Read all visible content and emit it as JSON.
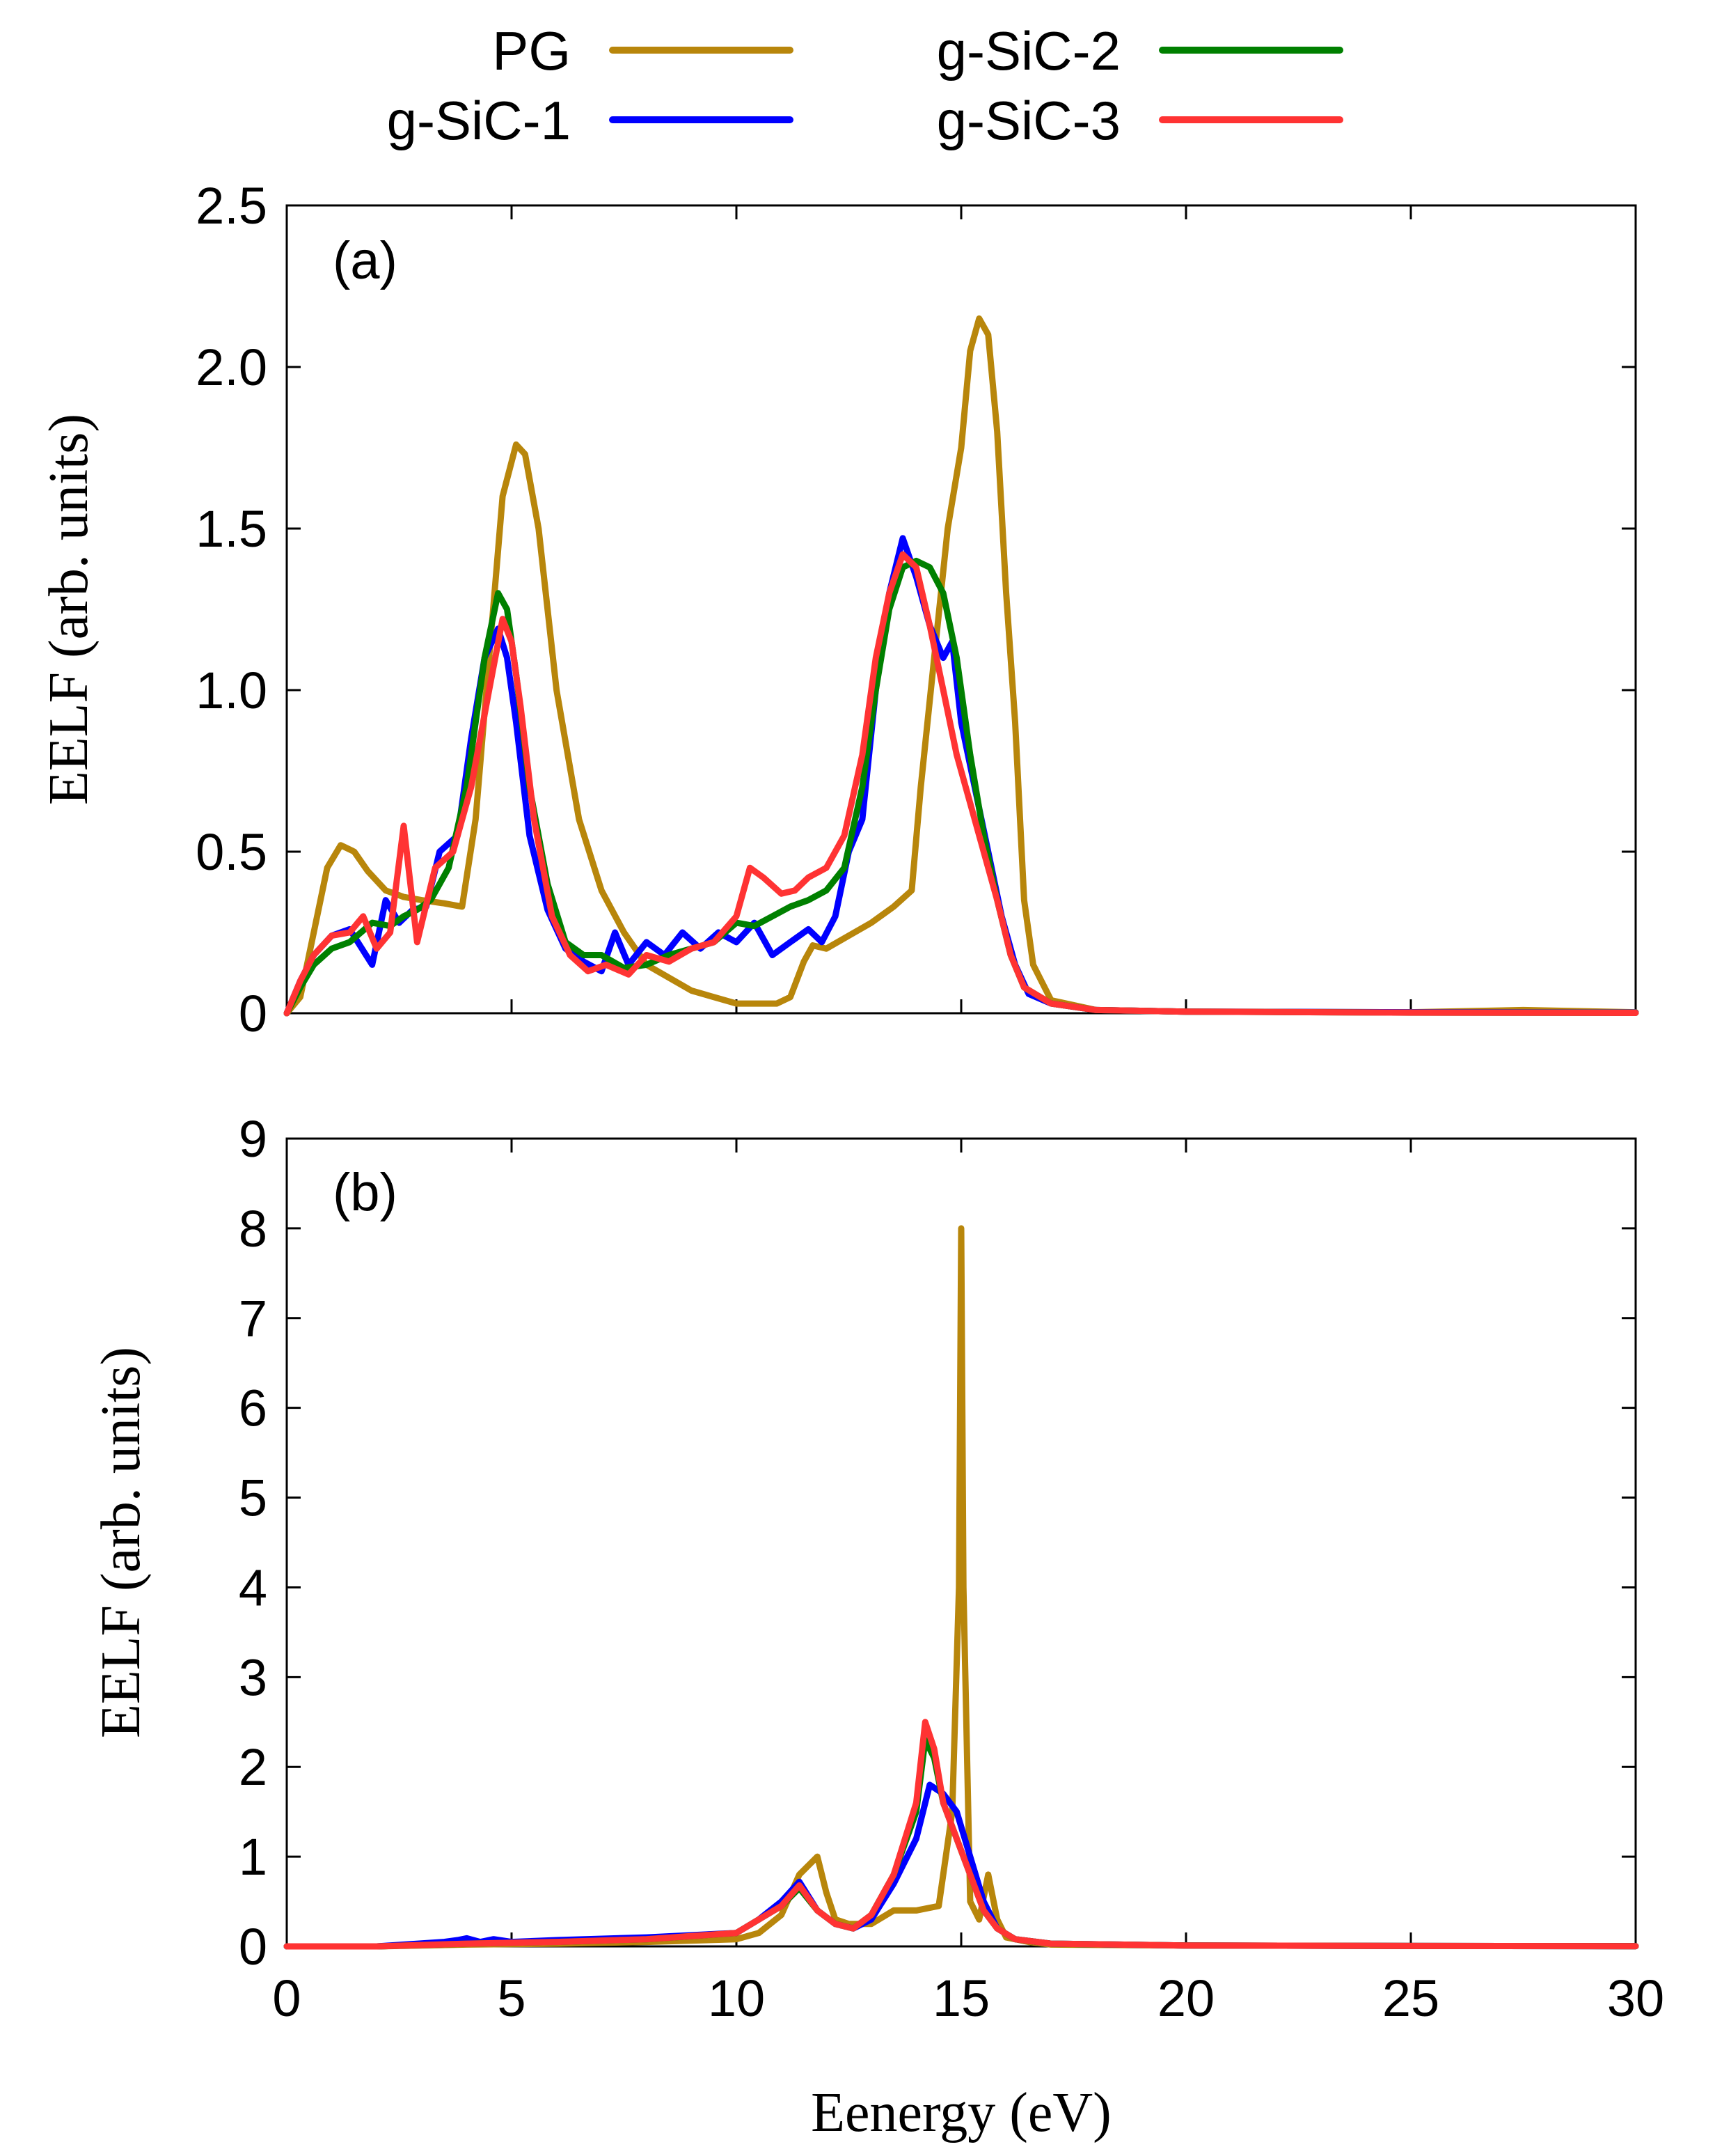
{
  "chart_data": {
    "type": "line",
    "xlabel": "Eenergy (eV)",
    "xlim": [
      0,
      30
    ],
    "xticks": [
      "0",
      "5",
      "10",
      "15",
      "20",
      "25",
      "30"
    ],
    "legend": {
      "placement": "top-center",
      "entries": [
        {
          "name": "PG",
          "color": "#b8860b"
        },
        {
          "name": "g-SiC-1",
          "color": "#0000ff"
        },
        {
          "name": "g-SiC-2",
          "color": "#008000"
        },
        {
          "name": "g-SiC-3",
          "color": "#ff3333"
        }
      ]
    },
    "panels": [
      {
        "label": "(a)",
        "ylabel": "EELF (arb. units)",
        "ylim": [
          0,
          2.5
        ],
        "yticks": [
          "0",
          "0.5",
          "1.0",
          "1.5",
          "2.0",
          "2.5"
        ],
        "series": [
          {
            "name": "PG",
            "color": "#b8860b",
            "x": [
              0,
              0.3,
              0.6,
              0.9,
              1.2,
              1.5,
              1.8,
              2.2,
              2.6,
              3.0,
              3.5,
              3.9,
              4.2,
              4.5,
              4.8,
              5.1,
              5.3,
              5.6,
              6.0,
              6.5,
              7.0,
              7.5,
              8.0,
              9.0,
              10.0,
              10.9,
              11.2,
              11.5,
              11.7,
              12.0,
              12.5,
              13.0,
              13.5,
              13.9,
              14.1,
              14.4,
              14.7,
              15.0,
              15.2,
              15.4,
              15.6,
              15.8,
              16.0,
              16.2,
              16.4,
              16.6,
              17.0,
              18.0,
              20.0,
              25.0,
              27.5,
              30.0
            ],
            "values": [
              0,
              0.05,
              0.25,
              0.45,
              0.52,
              0.5,
              0.44,
              0.38,
              0.36,
              0.35,
              0.34,
              0.33,
              0.6,
              1.1,
              1.6,
              1.76,
              1.73,
              1.5,
              1.0,
              0.6,
              0.38,
              0.25,
              0.15,
              0.07,
              0.03,
              0.03,
              0.05,
              0.16,
              0.21,
              0.2,
              0.24,
              0.28,
              0.33,
              0.38,
              0.7,
              1.1,
              1.5,
              1.75,
              2.05,
              2.15,
              2.1,
              1.8,
              1.3,
              0.9,
              0.35,
              0.15,
              0.04,
              0.01,
              0.005,
              0.003,
              0.01,
              0.003
            ]
          },
          {
            "name": "g-SiC-1",
            "color": "#0000ff",
            "x": [
              0,
              0.3,
              0.6,
              1.0,
              1.4,
              1.9,
              2.2,
              2.5,
              2.8,
              3.1,
              3.4,
              3.8,
              4.1,
              4.4,
              4.7,
              4.9,
              5.1,
              5.4,
              5.8,
              6.2,
              6.6,
              7.0,
              7.3,
              7.6,
              8.0,
              8.4,
              8.8,
              9.2,
              9.6,
              10.0,
              10.4,
              10.8,
              11.2,
              11.6,
              11.9,
              12.2,
              12.5,
              12.8,
              13.1,
              13.4,
              13.7,
              14.0,
              14.3,
              14.6,
              14.8,
              15.0,
              15.3,
              15.6,
              15.9,
              16.2,
              16.5,
              17.0,
              18.0,
              20.0,
              25.0,
              30.0
            ],
            "values": [
              0,
              0.1,
              0.18,
              0.24,
              0.26,
              0.15,
              0.35,
              0.28,
              0.32,
              0.33,
              0.5,
              0.55,
              0.85,
              1.1,
              1.19,
              1.1,
              0.9,
              0.55,
              0.32,
              0.2,
              0.16,
              0.13,
              0.25,
              0.15,
              0.22,
              0.18,
              0.25,
              0.2,
              0.25,
              0.22,
              0.28,
              0.18,
              0.22,
              0.26,
              0.22,
              0.3,
              0.5,
              0.6,
              1.0,
              1.3,
              1.47,
              1.35,
              1.2,
              1.1,
              1.15,
              0.9,
              0.7,
              0.5,
              0.3,
              0.15,
              0.06,
              0.03,
              0.01,
              0.005,
              0.003,
              0.002
            ]
          },
          {
            "name": "g-SiC-2",
            "color": "#008000",
            "x": [
              0,
              0.3,
              0.6,
              1.0,
              1.4,
              1.9,
              2.3,
              2.6,
              2.9,
              3.2,
              3.6,
              4.0,
              4.4,
              4.7,
              4.9,
              5.1,
              5.4,
              5.8,
              6.2,
              6.6,
              7.0,
              7.5,
              8.0,
              8.5,
              9.0,
              9.5,
              10.0,
              10.4,
              10.8,
              11.2,
              11.6,
              12.0,
              12.4,
              12.8,
              13.1,
              13.4,
              13.7,
              14.0,
              14.3,
              14.6,
              14.9,
              15.2,
              15.5,
              15.8,
              16.1,
              16.4,
              17.0,
              18.0,
              20.0,
              25.0,
              30.0
            ],
            "values": [
              0,
              0.08,
              0.15,
              0.2,
              0.22,
              0.28,
              0.27,
              0.3,
              0.32,
              0.35,
              0.45,
              0.7,
              1.1,
              1.3,
              1.25,
              1.05,
              0.7,
              0.4,
              0.22,
              0.18,
              0.18,
              0.14,
              0.15,
              0.18,
              0.2,
              0.22,
              0.28,
              0.27,
              0.3,
              0.33,
              0.35,
              0.38,
              0.45,
              0.7,
              1.0,
              1.25,
              1.38,
              1.4,
              1.38,
              1.3,
              1.1,
              0.8,
              0.55,
              0.35,
              0.18,
              0.08,
              0.03,
              0.01,
              0.005,
              0.002,
              0.001
            ]
          },
          {
            "name": "g-SiC-3",
            "color": "#ff3333",
            "x": [
              0,
              0.3,
              0.6,
              1.0,
              1.4,
              1.7,
              2.0,
              2.3,
              2.6,
              2.9,
              3.3,
              3.7,
              4.1,
              4.5,
              4.8,
              5.0,
              5.2,
              5.5,
              5.9,
              6.3,
              6.7,
              7.1,
              7.6,
              8.0,
              8.5,
              9.0,
              9.5,
              10.0,
              10.3,
              10.6,
              11.0,
              11.3,
              11.6,
              12.0,
              12.4,
              12.8,
              13.1,
              13.4,
              13.7,
              14.0,
              14.3,
              14.6,
              14.9,
              15.2,
              15.5,
              15.8,
              16.1,
              16.4,
              17.0,
              18.0,
              20.0,
              25.0,
              30.0
            ],
            "values": [
              0,
              0.1,
              0.18,
              0.24,
              0.25,
              0.3,
              0.2,
              0.25,
              0.58,
              0.22,
              0.45,
              0.5,
              0.7,
              1.0,
              1.22,
              1.15,
              0.95,
              0.6,
              0.3,
              0.18,
              0.13,
              0.15,
              0.12,
              0.18,
              0.16,
              0.2,
              0.22,
              0.3,
              0.45,
              0.42,
              0.37,
              0.38,
              0.42,
              0.45,
              0.55,
              0.8,
              1.1,
              1.3,
              1.42,
              1.38,
              1.2,
              1.0,
              0.8,
              0.65,
              0.5,
              0.35,
              0.18,
              0.08,
              0.03,
              0.01,
              0.005,
              0.002,
              0.001
            ]
          }
        ]
      },
      {
        "label": "(b)",
        "ylabel": "EELF (arb. units)",
        "ylim": [
          0,
          9
        ],
        "yticks": [
          "0",
          "1",
          "2",
          "3",
          "4",
          "5",
          "6",
          "7",
          "8",
          "9"
        ],
        "series": [
          {
            "name": "PG",
            "color": "#b8860b",
            "x": [
              0,
              2,
              4,
              6,
              8,
              10,
              10.5,
              11.0,
              11.4,
              11.8,
              12.0,
              12.2,
              12.5,
              13.0,
              13.5,
              14.0,
              14.5,
              14.8,
              14.95,
              15.0,
              15.05,
              15.2,
              15.4,
              15.6,
              15.8,
              16.0,
              16.5,
              17,
              20,
              25,
              30
            ],
            "values": [
              0,
              0,
              0.02,
              0.03,
              0.05,
              0.08,
              0.15,
              0.35,
              0.8,
              1.0,
              0.6,
              0.3,
              0.25,
              0.25,
              0.4,
              0.4,
              0.45,
              1.5,
              4.0,
              8.0,
              4.0,
              0.5,
              0.3,
              0.8,
              0.3,
              0.1,
              0.05,
              0.02,
              0.01,
              0.005,
              0.003
            ]
          },
          {
            "name": "g-SiC-1",
            "color": "#0000ff",
            "x": [
              0,
              2,
              3.5,
              3.8,
              4.0,
              4.3,
              4.6,
              5,
              6,
              8,
              10,
              10.5,
              11.0,
              11.4,
              11.8,
              12.2,
              12.6,
              13.0,
              13.5,
              14.0,
              14.3,
              14.6,
              14.9,
              15.2,
              15.5,
              15.8,
              16.2,
              17,
              20,
              25,
              30
            ],
            "values": [
              0,
              0,
              0.05,
              0.07,
              0.09,
              0.05,
              0.08,
              0.05,
              0.07,
              0.1,
              0.15,
              0.3,
              0.5,
              0.72,
              0.4,
              0.25,
              0.2,
              0.3,
              0.7,
              1.2,
              1.8,
              1.7,
              1.5,
              1.0,
              0.5,
              0.2,
              0.08,
              0.03,
              0.01,
              0.005,
              0.002
            ]
          },
          {
            "name": "g-SiC-2",
            "color": "#008000",
            "x": [
              0,
              2,
              4,
              6,
              8,
              10,
              10.5,
              11.0,
              11.4,
              11.8,
              12.2,
              12.6,
              13.0,
              13.5,
              14.0,
              14.2,
              14.4,
              14.6,
              14.9,
              15.2,
              15.5,
              15.8,
              16.2,
              17,
              20,
              25,
              30
            ],
            "values": [
              0,
              0,
              0.03,
              0.05,
              0.08,
              0.15,
              0.3,
              0.45,
              0.65,
              0.4,
              0.25,
              0.2,
              0.35,
              0.8,
              1.5,
              2.3,
              2.1,
              1.6,
              1.2,
              0.8,
              0.4,
              0.2,
              0.08,
              0.03,
              0.01,
              0.005,
              0.002
            ]
          },
          {
            "name": "g-SiC-3",
            "color": "#ff3333",
            "x": [
              0,
              2,
              4,
              6,
              8,
              10,
              10.5,
              11.0,
              11.4,
              11.8,
              12.2,
              12.6,
              13.0,
              13.5,
              14.0,
              14.2,
              14.4,
              14.6,
              14.9,
              15.2,
              15.5,
              15.8,
              16.2,
              17,
              20,
              25,
              30
            ],
            "values": [
              0,
              0,
              0.03,
              0.05,
              0.08,
              0.15,
              0.3,
              0.45,
              0.68,
              0.4,
              0.25,
              0.2,
              0.35,
              0.8,
              1.6,
              2.5,
              2.2,
              1.6,
              1.2,
              0.8,
              0.4,
              0.2,
              0.08,
              0.03,
              0.01,
              0.005,
              0.002
            ]
          }
        ]
      }
    ]
  }
}
